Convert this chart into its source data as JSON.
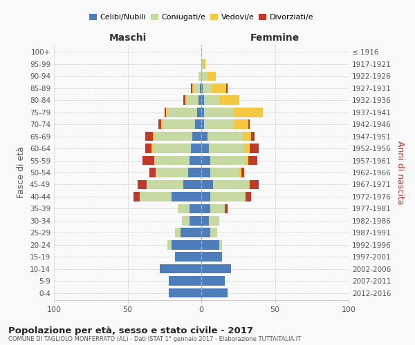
{
  "age_groups": [
    "0-4",
    "5-9",
    "10-14",
    "15-19",
    "20-24",
    "25-29",
    "30-34",
    "35-39",
    "40-44",
    "45-49",
    "50-54",
    "55-59",
    "60-64",
    "65-69",
    "70-74",
    "75-79",
    "80-84",
    "85-89",
    "90-94",
    "95-99",
    "100+"
  ],
  "birth_years": [
    "2012-2016",
    "2007-2011",
    "2002-2006",
    "1997-2001",
    "1992-1996",
    "1987-1991",
    "1982-1986",
    "1977-1981",
    "1972-1976",
    "1967-1971",
    "1962-1966",
    "1957-1961",
    "1952-1956",
    "1947-1951",
    "1942-1946",
    "1937-1941",
    "1932-1936",
    "1927-1931",
    "1922-1926",
    "1917-1921",
    "≤ 1916"
  ],
  "maschi": {
    "celibi": [
      22,
      22,
      28,
      18,
      20,
      14,
      8,
      8,
      20,
      12,
      9,
      8,
      7,
      6,
      4,
      3,
      2,
      1,
      0,
      0,
      0
    ],
    "coniugati": [
      0,
      0,
      0,
      0,
      3,
      4,
      5,
      8,
      22,
      25,
      22,
      24,
      26,
      26,
      22,
      20,
      8,
      4,
      2,
      0,
      0
    ],
    "vedovi": [
      0,
      0,
      0,
      0,
      0,
      0,
      0,
      0,
      0,
      0,
      0,
      0,
      1,
      1,
      1,
      1,
      1,
      1,
      0,
      0,
      0
    ],
    "divorziati": [
      0,
      0,
      0,
      0,
      0,
      0,
      0,
      0,
      4,
      6,
      4,
      8,
      4,
      5,
      2,
      1,
      1,
      1,
      0,
      0,
      0
    ]
  },
  "femmine": {
    "nubili": [
      18,
      16,
      20,
      14,
      12,
      6,
      5,
      6,
      6,
      8,
      6,
      6,
      5,
      4,
      2,
      2,
      2,
      1,
      0,
      0,
      0
    ],
    "coniugate": [
      0,
      0,
      0,
      0,
      2,
      5,
      7,
      10,
      24,
      24,
      20,
      24,
      24,
      24,
      20,
      20,
      10,
      6,
      4,
      1,
      0
    ],
    "vedove": [
      0,
      0,
      0,
      0,
      0,
      0,
      0,
      0,
      0,
      1,
      1,
      2,
      4,
      6,
      10,
      20,
      14,
      10,
      6,
      2,
      0
    ],
    "divorziate": [
      0,
      0,
      0,
      0,
      0,
      0,
      0,
      2,
      4,
      6,
      2,
      6,
      6,
      2,
      1,
      0,
      0,
      1,
      0,
      0,
      0
    ]
  },
  "colors": {
    "celibi": "#4d7dba",
    "coniugati": "#c5d9a0",
    "vedovi": "#f5c842",
    "divorziati": "#c0392b"
  },
  "xlim": 100,
  "title": "Popolazione per età, sesso e stato civile - 2017",
  "subtitle": "COMUNE DI TAGLIOLO MONFERRATO (AL) - Dati ISTAT 1° gennaio 2017 - Elaborazione TUTTAITALIA.IT",
  "ylabel_left": "Fasce di età",
  "ylabel_right": "Anni di nascita",
  "xlabel_left": "Maschi",
  "xlabel_right": "Femmine",
  "bg_color": "#f9f9f9",
  "grid_color": "#cccccc"
}
